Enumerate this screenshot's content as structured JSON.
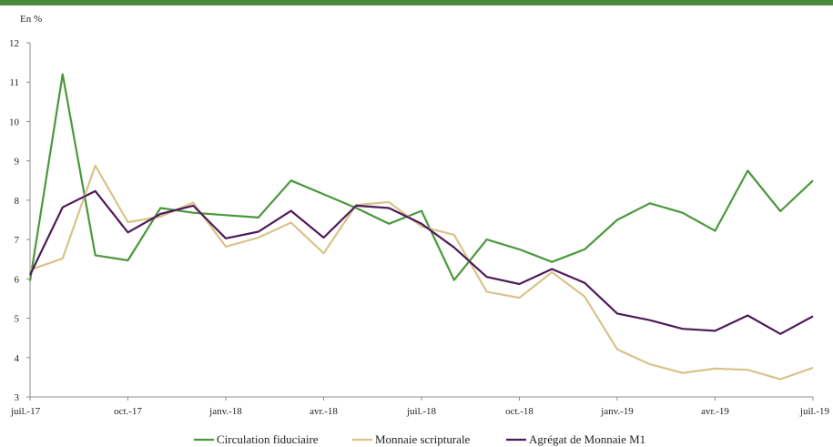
{
  "chart_data": {
    "type": "line",
    "unit_label": "En %",
    "grid": false,
    "legend_position": "bottom",
    "ylim": [
      3,
      12
    ],
    "yticks": [
      3,
      4,
      5,
      6,
      7,
      8,
      9,
      10,
      11,
      12
    ],
    "x": [
      "juil.-17",
      "août-17",
      "sept.-17",
      "oct.-17",
      "nov.-17",
      "déc.-17",
      "janv.-18",
      "févr.-18",
      "mars-18",
      "avr.-18",
      "mai-18",
      "juin-18",
      "juil.-18",
      "août-18",
      "sept.-18",
      "oct.-18",
      "nov.-18",
      "déc.-18",
      "janv.-19",
      "févr.-19",
      "mars-19",
      "avr.-19",
      "mai-19",
      "juin-19",
      "juil.-19"
    ],
    "xtick_labels": [
      {
        "index": 0,
        "label": "juil.-17"
      },
      {
        "index": 3,
        "label": "oct.-17"
      },
      {
        "index": 6,
        "label": "janv.-18"
      },
      {
        "index": 9,
        "label": "avr.-18"
      },
      {
        "index": 12,
        "label": "juil.-18"
      },
      {
        "index": 15,
        "label": "oct.-18"
      },
      {
        "index": 18,
        "label": "janv.-19"
      },
      {
        "index": 21,
        "label": "avr.-19"
      },
      {
        "index": 24,
        "label": "juil.-19"
      }
    ],
    "series": [
      {
        "name": "Circulation fiduciaire",
        "color": "#4a983c",
        "values": [
          5.95,
          11.2,
          6.6,
          6.47,
          7.8,
          7.68,
          7.62,
          7.56,
          8.5,
          8.15,
          7.8,
          7.4,
          7.73,
          5.97,
          7.0,
          6.75,
          6.43,
          6.75,
          7.5,
          7.92,
          7.68,
          7.22,
          8.75,
          7.72,
          8.5
        ]
      },
      {
        "name": "Monnaie scripturale",
        "color": "#d9c38a",
        "values": [
          6.23,
          6.52,
          8.88,
          7.44,
          7.58,
          7.94,
          6.82,
          7.05,
          7.43,
          6.65,
          7.88,
          7.95,
          7.33,
          7.12,
          5.67,
          5.52,
          6.17,
          5.55,
          4.21,
          3.83,
          3.61,
          3.72,
          3.69,
          3.45,
          3.74
        ]
      },
      {
        "name": "Agrégat de Monnaie M1",
        "color": "#4f1a5a",
        "values": [
          6.1,
          7.82,
          8.23,
          7.18,
          7.65,
          7.86,
          7.03,
          7.2,
          7.73,
          7.05,
          7.86,
          7.8,
          7.4,
          6.8,
          6.05,
          5.87,
          6.25,
          5.9,
          5.12,
          4.95,
          4.73,
          4.68,
          5.07,
          4.6,
          5.05
        ]
      }
    ]
  }
}
